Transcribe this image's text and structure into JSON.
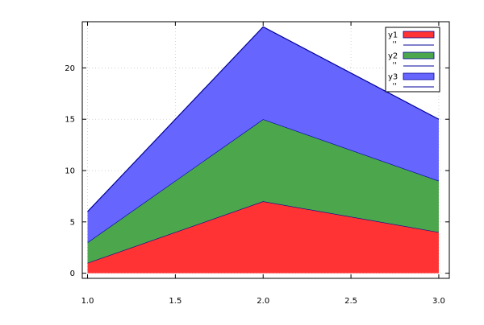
{
  "chart_data": {
    "type": "area",
    "stacked": true,
    "x": [
      1.0,
      2.0,
      3.0
    ],
    "series": [
      {
        "name": "y1",
        "values": [
          1,
          7,
          4
        ],
        "color": "#ff3333",
        "line_label": "''"
      },
      {
        "name": "y2",
        "values": [
          2,
          8,
          5
        ],
        "color": "#4ca64c",
        "line_label": "''"
      },
      {
        "name": "y3",
        "values": [
          3,
          9,
          6
        ],
        "color": "#6666ff",
        "line_label": "''"
      }
    ],
    "boundary_color": "#000099",
    "xlim": [
      0.97,
      3.06
    ],
    "ylim": [
      -0.5,
      24.5
    ],
    "xticks": [
      1.0,
      1.5,
      2.0,
      2.5,
      3.0
    ],
    "xtick_labels": [
      "1.0",
      "1.5",
      "2.0",
      "2.5",
      "3.0"
    ],
    "yticks": [
      0,
      5,
      10,
      15,
      20
    ],
    "ytick_labels": [
      "0",
      "5",
      "10",
      "15",
      "20"
    ],
    "grid": true,
    "grid_color": "#c8c8c8",
    "legend_position": "top-right"
  }
}
